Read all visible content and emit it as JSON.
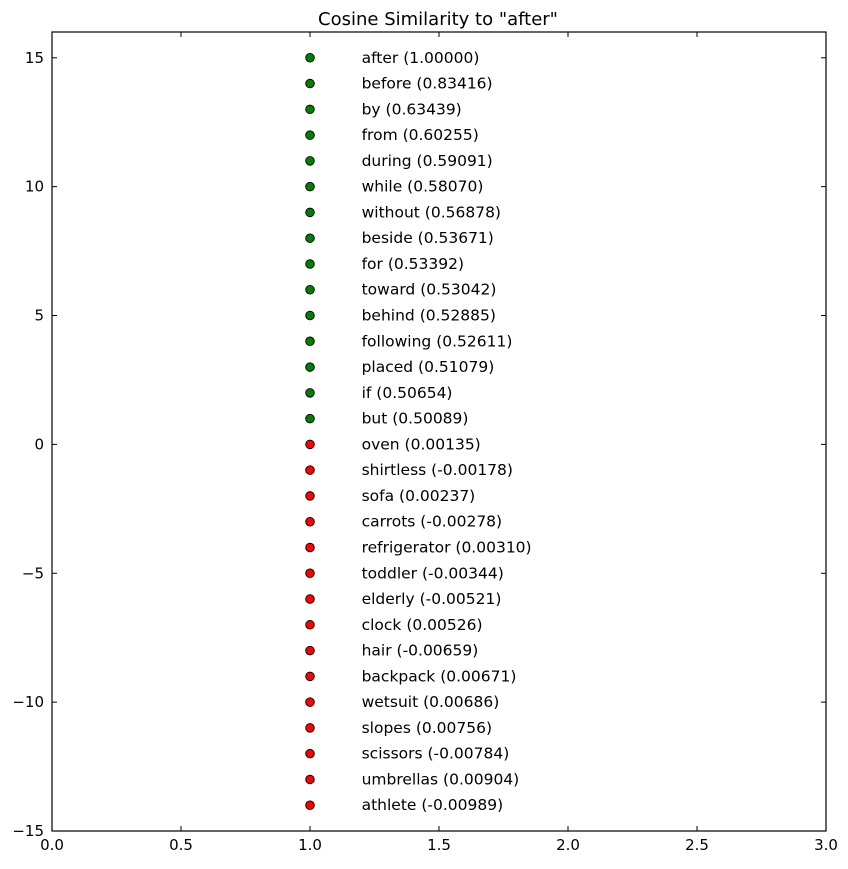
{
  "chart_data": {
    "type": "scatter",
    "title": "Cosine Similarity to \"after\"",
    "xlabel": "",
    "ylabel": "",
    "xlim": [
      0.0,
      3.0
    ],
    "ylim": [
      -15,
      16
    ],
    "x_ticks": [
      0.0,
      0.5,
      1.0,
      1.5,
      2.0,
      2.5,
      3.0
    ],
    "x_tick_labels": [
      "0.0",
      "0.5",
      "1.0",
      "1.5",
      "2.0",
      "2.5",
      "3.0"
    ],
    "y_ticks": [
      15,
      10,
      5,
      0,
      -5,
      -10,
      -15
    ],
    "y_tick_labels": [
      "15",
      "10",
      "5",
      "0",
      "−5",
      "−10",
      "−15"
    ],
    "grid": false,
    "colors": {
      "similar": "#008000",
      "dissimilar": "#ff0000",
      "marker_edge": "#000000",
      "axes": "#000000",
      "text": "#000000"
    },
    "points": [
      {
        "x": 1,
        "y": 15,
        "group": "similar",
        "label": "after (1.00000)"
      },
      {
        "x": 1,
        "y": 14,
        "group": "similar",
        "label": "before (0.83416)"
      },
      {
        "x": 1,
        "y": 13,
        "group": "similar",
        "label": "by (0.63439)"
      },
      {
        "x": 1,
        "y": 12,
        "group": "similar",
        "label": "from (0.60255)"
      },
      {
        "x": 1,
        "y": 11,
        "group": "similar",
        "label": "during (0.59091)"
      },
      {
        "x": 1,
        "y": 10,
        "group": "similar",
        "label": "while (0.58070)"
      },
      {
        "x": 1,
        "y": 9,
        "group": "similar",
        "label": "without (0.56878)"
      },
      {
        "x": 1,
        "y": 8,
        "group": "similar",
        "label": "beside (0.53671)"
      },
      {
        "x": 1,
        "y": 7,
        "group": "similar",
        "label": "for (0.53392)"
      },
      {
        "x": 1,
        "y": 6,
        "group": "similar",
        "label": "toward (0.53042)"
      },
      {
        "x": 1,
        "y": 5,
        "group": "similar",
        "label": "behind (0.52885)"
      },
      {
        "x": 1,
        "y": 4,
        "group": "similar",
        "label": "following (0.52611)"
      },
      {
        "x": 1,
        "y": 3,
        "group": "similar",
        "label": "placed (0.51079)"
      },
      {
        "x": 1,
        "y": 2,
        "group": "similar",
        "label": "if (0.50654)"
      },
      {
        "x": 1,
        "y": 1,
        "group": "similar",
        "label": "but (0.50089)"
      },
      {
        "x": 1,
        "y": 0,
        "group": "dissimilar",
        "label": "oven (0.00135)"
      },
      {
        "x": 1,
        "y": -1,
        "group": "dissimilar",
        "label": "shirtless (-0.00178)"
      },
      {
        "x": 1,
        "y": -2,
        "group": "dissimilar",
        "label": "sofa (0.00237)"
      },
      {
        "x": 1,
        "y": -3,
        "group": "dissimilar",
        "label": "carrots (-0.00278)"
      },
      {
        "x": 1,
        "y": -4,
        "group": "dissimilar",
        "label": "refrigerator (0.00310)"
      },
      {
        "x": 1,
        "y": -5,
        "group": "dissimilar",
        "label": "toddler (-0.00344)"
      },
      {
        "x": 1,
        "y": -6,
        "group": "dissimilar",
        "label": "elderly (-0.00521)"
      },
      {
        "x": 1,
        "y": -7,
        "group": "dissimilar",
        "label": "clock (0.00526)"
      },
      {
        "x": 1,
        "y": -8,
        "group": "dissimilar",
        "label": "hair (-0.00659)"
      },
      {
        "x": 1,
        "y": -9,
        "group": "dissimilar",
        "label": "backpack (0.00671)"
      },
      {
        "x": 1,
        "y": -10,
        "group": "dissimilar",
        "label": "wetsuit (0.00686)"
      },
      {
        "x": 1,
        "y": -11,
        "group": "dissimilar",
        "label": "slopes (0.00756)"
      },
      {
        "x": 1,
        "y": -12,
        "group": "dissimilar",
        "label": "scissors (-0.00784)"
      },
      {
        "x": 1,
        "y": -13,
        "group": "dissimilar",
        "label": "umbrellas (0.00904)"
      },
      {
        "x": 1,
        "y": -14,
        "group": "dissimilar",
        "label": "athlete (-0.00989)"
      }
    ]
  }
}
